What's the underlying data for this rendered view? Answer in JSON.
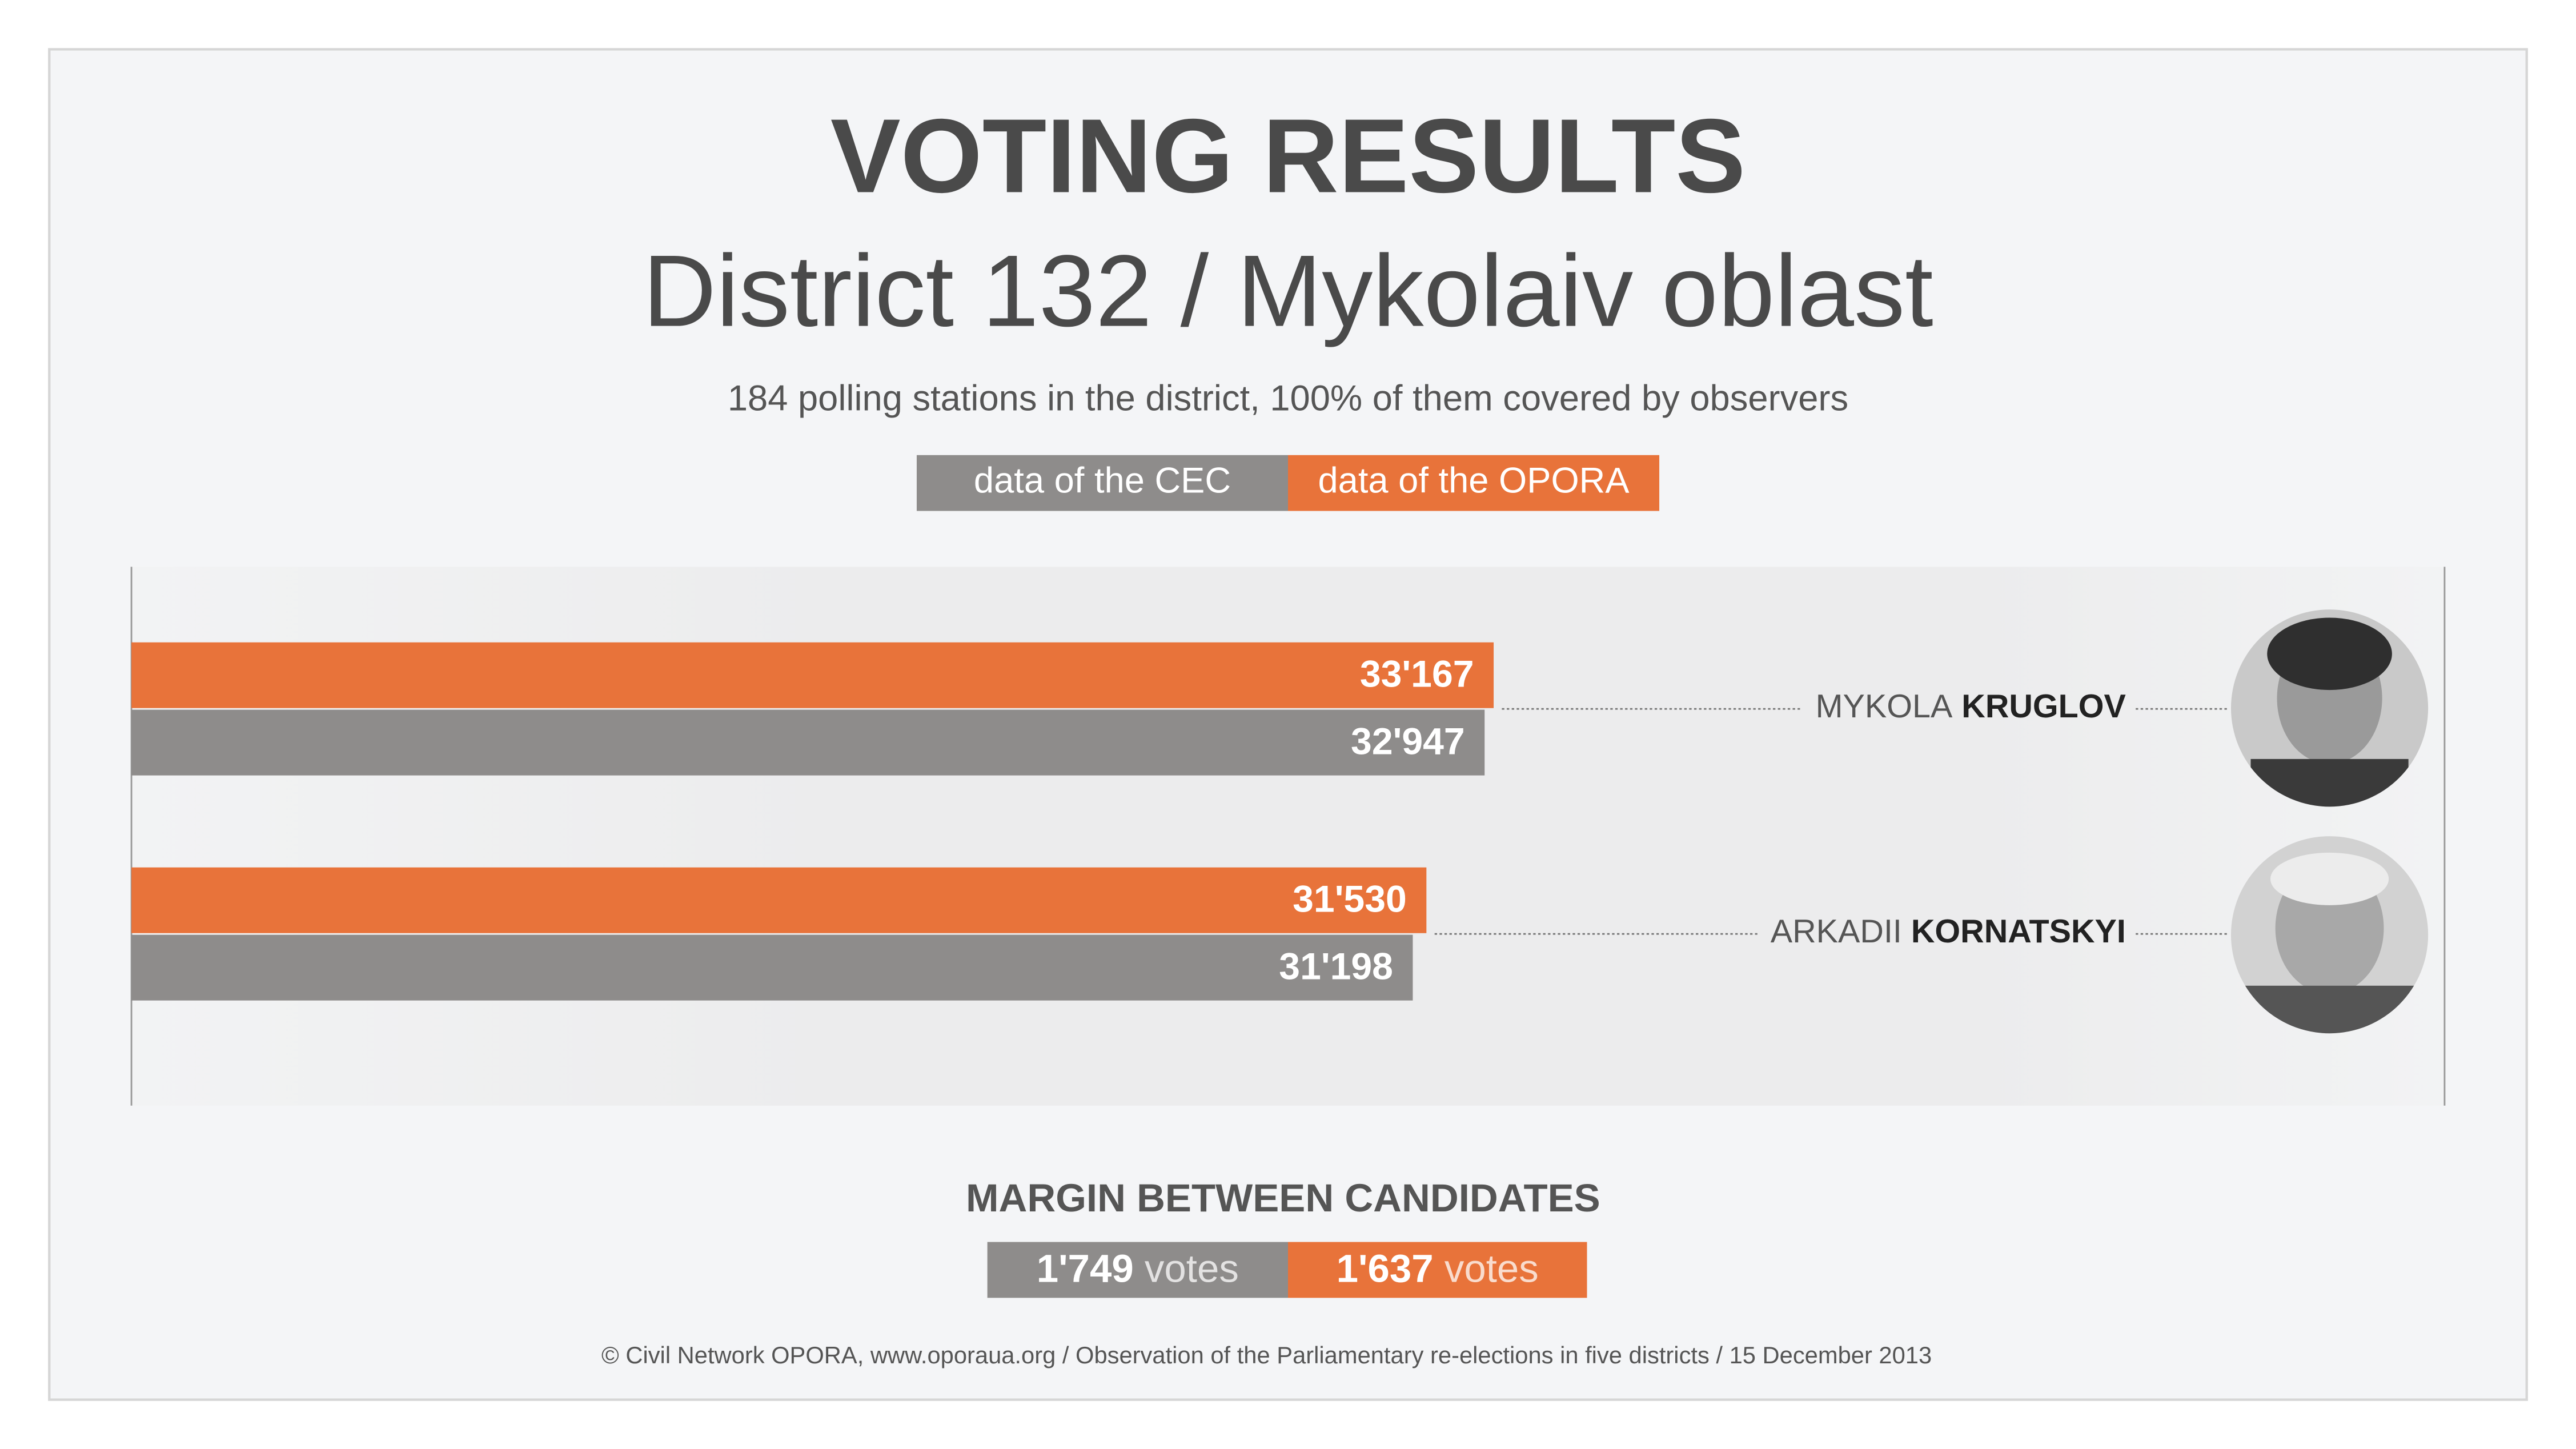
{
  "chart_data": {
    "type": "bar",
    "orientation": "horizontal",
    "title": "VOTING RESULTS",
    "subtitle": "District 132 / Mykolaiv oblast",
    "note": "184 polling stations in the district, 100% of them covered by observers",
    "first_names": [
      "MYKOLA",
      "ARKADII"
    ],
    "categories": [
      "KRUGLOV",
      "KORNATSKYI"
    ],
    "xlim": [
      0,
      40000
    ],
    "series": [
      {
        "name": "data of the OPORA",
        "color": "#e8733a",
        "values": [
          33167,
          31530
        ],
        "value_labels": [
          "33'167",
          "31'530"
        ]
      },
      {
        "name": "data of the CEC",
        "color": "#8e8c8b",
        "values": [
          32947,
          31198
        ],
        "value_labels": [
          "32'947",
          "31'198"
        ]
      }
    ],
    "margin": {
      "title": "MARGIN BETWEEN CANDIDATES",
      "unit": "votes",
      "values": [
        1749,
        1637
      ],
      "value_labels": [
        "1'749",
        "1'637"
      ]
    },
    "footer": "© Civil Network OPORA, www.oporaua.org / Observation of the Parliamentary re-elections  in five districts / 15 December 2013"
  }
}
